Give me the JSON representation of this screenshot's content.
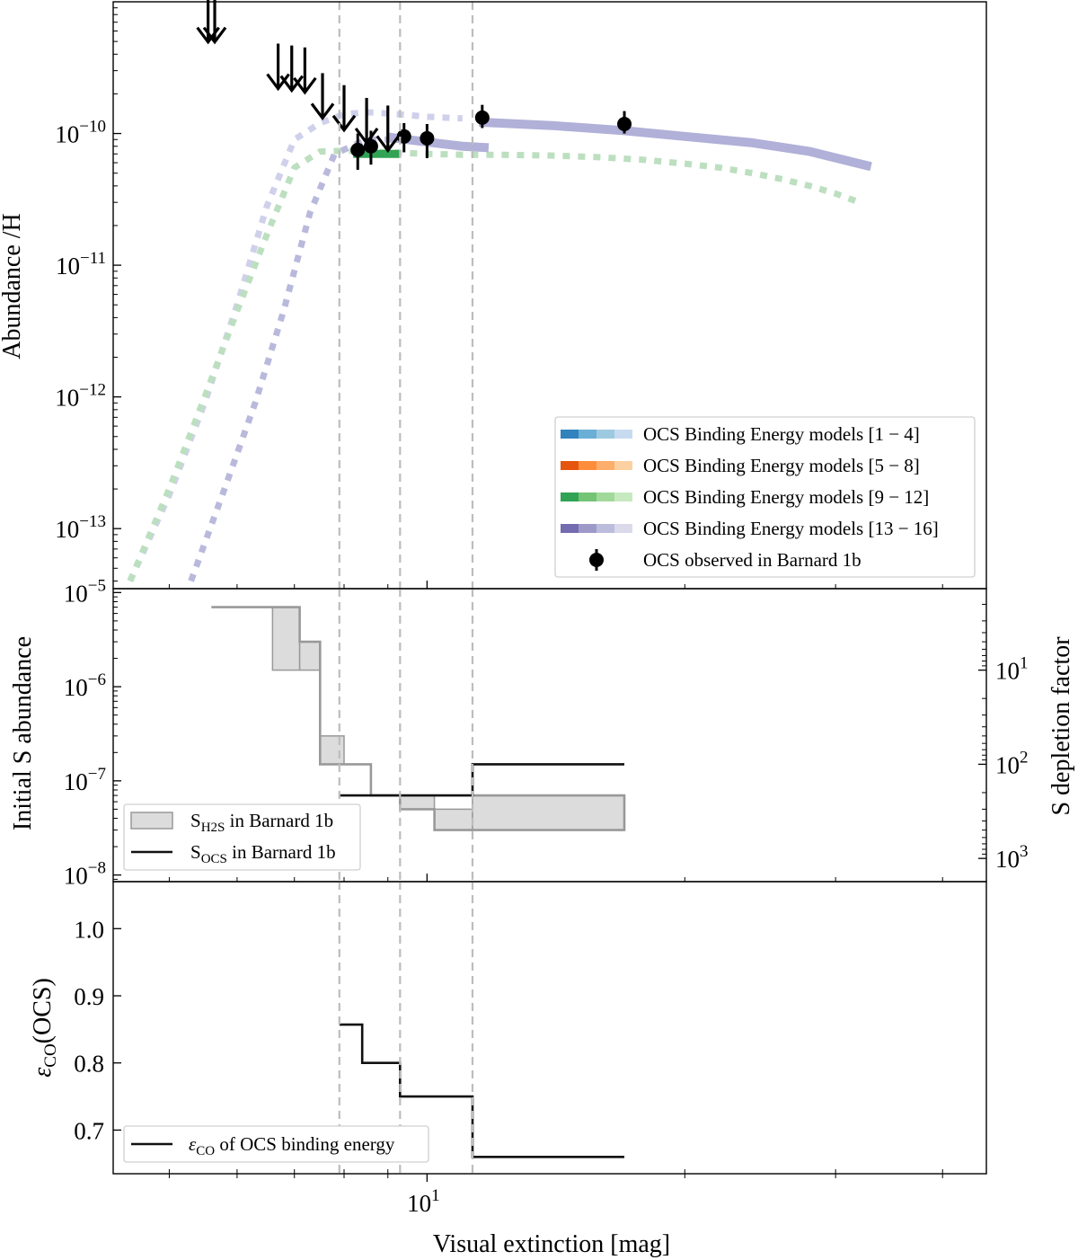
{
  "chart_data": [
    {
      "panel": "top",
      "type": "line",
      "xscale": "log",
      "yscale": "log",
      "xlim": [
        4.3,
        45
      ],
      "ylim": [
        3.5e-14,
        1e-09
      ],
      "xlabel": "",
      "ylabel": "Abundance /H",
      "yticks": [
        {
          "value": 1e-13,
          "base": "10",
          "exp": "−13"
        },
        {
          "value": 1e-12,
          "base": "10",
          "exp": "−12"
        },
        {
          "value": 1e-11,
          "base": "10",
          "exp": "−11"
        },
        {
          "value": 1e-10,
          "base": "10",
          "exp": "−10"
        }
      ],
      "vlines": [
        7.9,
        9.3,
        11.3
      ],
      "series": [
        {
          "name": "model-13-16-faint",
          "color": "#cfd0ea",
          "style": "dotted",
          "points": [
            [
              4.5,
              4e-14
            ],
            [
              5.0,
              1.8e-13
            ],
            [
              5.5,
              9e-13
            ],
            [
              6.0,
              5e-12
            ],
            [
              6.5,
              2.8e-11
            ],
            [
              7.0,
              9e-11
            ],
            [
              7.5,
              1.2e-10
            ],
            [
              8.0,
              1.4e-10
            ],
            [
              8.5,
              1.45e-10
            ],
            [
              9.0,
              1.42e-10
            ],
            [
              9.5,
              1.38e-10
            ],
            [
              10.0,
              1.34e-10
            ],
            [
              11.0,
              1.3e-10
            ]
          ]
        },
        {
          "name": "model-13-16-mid",
          "color": "#b9b9dc",
          "style": "dotted",
          "points": [
            [
              5.3,
              4e-14
            ],
            [
              5.8,
              2e-13
            ],
            [
              6.3,
              9e-13
            ],
            [
              6.8,
              4.5e-12
            ],
            [
              7.3,
              2.5e-11
            ],
            [
              7.8,
              7e-11
            ],
            [
              8.5,
              9e-11
            ],
            [
              9.5,
              9e-11
            ],
            [
              10.5,
              8.5e-11
            ]
          ]
        },
        {
          "name": "model-9-12-dotted",
          "color": "#bcdfc0",
          "style": "dotted",
          "points": [
            [
              4.5,
              4e-14
            ],
            [
              5.0,
              2e-13
            ],
            [
              5.5,
              1e-12
            ],
            [
              6.0,
              4.5e-12
            ],
            [
              6.5,
              1.7e-11
            ],
            [
              7.0,
              5.5e-11
            ],
            [
              7.5,
              7.3e-11
            ],
            [
              8.0,
              7.4e-11
            ],
            [
              8.5,
              7.3e-11
            ],
            [
              9.0,
              7.2e-11
            ],
            [
              10.0,
              7e-11
            ],
            [
              11.0,
              6.9e-11
            ],
            [
              12.0,
              6.9e-11
            ],
            [
              14.0,
              6.8e-11
            ],
            [
              16.0,
              6.6e-11
            ],
            [
              18.0,
              6.3e-11
            ],
            [
              20.0,
              5.9e-11
            ],
            [
              22.0,
              5.5e-11
            ],
            [
              24.0,
              5e-11
            ],
            [
              26.0,
              4.5e-11
            ],
            [
              28.0,
              4e-11
            ],
            [
              30.0,
              3.5e-11
            ],
            [
              32.0,
              3e-11
            ]
          ]
        },
        {
          "name": "model-9-12-fit",
          "color": "#31a354",
          "style": "solid",
          "points": [
            [
              8.2,
              7e-11
            ],
            [
              9.3,
              7e-11
            ]
          ]
        },
        {
          "name": "model-13-16-fit-1",
          "color": "#b0b0d8",
          "style": "solid",
          "points": [
            [
              9.0,
              9.4e-11
            ],
            [
              10.0,
              8.6e-11
            ],
            [
              11.0,
              8e-11
            ],
            [
              11.8,
              7.8e-11
            ]
          ]
        },
        {
          "name": "model-13-16-fit-2",
          "color": "#b0b0d8",
          "style": "solid",
          "points": [
            [
              11.5,
              1.22e-10
            ],
            [
              14.0,
              1.15e-10
            ],
            [
              17.0,
              1.05e-10
            ],
            [
              20.0,
              9.5e-11
            ],
            [
              24.0,
              8.5e-11
            ],
            [
              28.0,
              7.3e-11
            ],
            [
              33.0,
              5.6e-11
            ]
          ]
        }
      ],
      "upper_limits": [
        [
          5.55,
          7e-10
        ],
        [
          5.65,
          7e-10
        ],
        [
          6.7,
          3.1e-10
        ],
        [
          6.95,
          3e-10
        ],
        [
          7.2,
          2.9e-10
        ],
        [
          7.55,
          1.85e-10
        ],
        [
          8.0,
          1.5e-10
        ],
        [
          8.5,
          1.2e-10
        ],
        [
          9.0,
          1.05e-10
        ]
      ],
      "observations": [
        [
          8.3,
          7.5e-11,
          5.3e-11,
          1e-10
        ],
        [
          8.6,
          8e-11,
          5.8e-11,
          1.05e-10
        ],
        [
          9.4,
          9.5e-11,
          7.2e-11,
          1.2e-10
        ],
        [
          10.0,
          9.2e-11,
          6.5e-11,
          1.18e-10
        ],
        [
          11.6,
          1.32e-10,
          1.1e-10,
          1.65e-10
        ],
        [
          17.0,
          1.18e-10,
          1e-10,
          1.48e-10
        ]
      ],
      "legend": {
        "placement": "lower-right",
        "entries": [
          {
            "label": "OCS Binding Energy models [1 − 4]",
            "colors": [
              "#3182bd",
              "#6baed6",
              "#9ecae1",
              "#c6dbef"
            ]
          },
          {
            "label": "OCS Binding Energy models [5 − 8]",
            "colors": [
              "#e6550d",
              "#fd8d3c",
              "#fdae6b",
              "#fdd0a2"
            ]
          },
          {
            "label": "OCS Binding Energy models [9 − 12]",
            "colors": [
              "#31a354",
              "#74c476",
              "#a1d99b",
              "#c7e9c0"
            ]
          },
          {
            "label": "OCS Binding Energy models [13 − 16]",
            "colors": [
              "#756bb1",
              "#9e9ac8",
              "#bcbddc",
              "#dadaeb"
            ]
          },
          {
            "label": "OCS observed in Barnard 1b",
            "colors": [
              "#000000"
            ]
          }
        ]
      }
    },
    {
      "panel": "middle",
      "type": "line",
      "xscale": "log",
      "yscale": "log",
      "xlim": [
        4.3,
        45
      ],
      "ylim": [
        8.5e-09,
        1.1e-05
      ],
      "ylabel": "Initial S abundance",
      "y2label": "S depletion factor",
      "yticks": [
        {
          "value": 1e-05,
          "base": "10",
          "exp": "−5"
        },
        {
          "value": 1e-06,
          "base": "10",
          "exp": "−6"
        },
        {
          "value": 1e-07,
          "base": "10",
          "exp": "−7"
        },
        {
          "value": 1e-08,
          "base": "10",
          "exp": "−8"
        }
      ],
      "y2ticks": [
        {
          "value": 1.5e-06,
          "base": "10",
          "exp": "1"
        },
        {
          "value": 1.5e-07,
          "base": "10",
          "exp": "2"
        },
        {
          "value": 1.5e-08,
          "base": "10",
          "exp": "3"
        }
      ],
      "vlines": [
        7.9,
        9.3,
        11.3
      ],
      "h2s_bands": [
        [
          6.6,
          7.1,
          1.5e-06,
          7e-06
        ],
        [
          7.1,
          7.5,
          1.5e-06,
          3e-06
        ],
        [
          7.5,
          8.0,
          1.5e-07,
          3e-07
        ],
        [
          9.3,
          10.2,
          5e-08,
          7e-08
        ],
        [
          10.2,
          11.3,
          3e-08,
          5e-08
        ],
        [
          11.3,
          17.0,
          3e-08,
          7e-08
        ]
      ],
      "h2s_step": [
        [
          5.6,
          7e-06
        ],
        [
          7.1,
          7e-06
        ],
        [
          7.1,
          3e-06
        ],
        [
          7.5,
          3e-06
        ],
        [
          7.5,
          1.5e-07
        ],
        [
          8.6,
          1.5e-07
        ],
        [
          8.6,
          7e-08
        ],
        [
          9.3,
          7e-08
        ],
        [
          9.3,
          5e-08
        ],
        [
          10.2,
          5e-08
        ],
        [
          10.2,
          3e-08
        ],
        [
          17.0,
          3e-08
        ],
        [
          17.0,
          7e-08
        ],
        [
          11.3,
          7e-08
        ]
      ],
      "ocs_step": [
        [
          7.9,
          7e-08
        ],
        [
          11.3,
          7e-08
        ],
        [
          11.3,
          1.5e-07
        ],
        [
          17.0,
          1.5e-07
        ]
      ],
      "legend": {
        "placement": "lower-left",
        "entries": [
          {
            "label": "in Barnard 1b",
            "symbol": "S",
            "sub": "H2S",
            "kind": "patch"
          },
          {
            "label": "in Barnard 1b",
            "symbol": "S",
            "sub": "OCS",
            "kind": "line"
          }
        ]
      }
    },
    {
      "panel": "bottom",
      "type": "line",
      "xscale": "log",
      "yscale": "linear",
      "xlim": [
        4.3,
        45
      ],
      "ylim": [
        0.635,
        1.07
      ],
      "xlabel": "Visual extinction [mag]",
      "ylabel_main": "ε",
      "ylabel_sub": "CO",
      "ylabel_tail": "(OCS)",
      "yticks": [
        "0.7",
        "0.8",
        "0.9",
        "1.0"
      ],
      "xticks": [
        {
          "value": 10,
          "base": "10",
          "exp": "1"
        }
      ],
      "vlines": [
        7.9,
        9.3,
        11.3
      ],
      "step": [
        [
          7.9,
          0.857
        ],
        [
          8.4,
          0.857
        ],
        [
          8.4,
          0.8
        ],
        [
          9.3,
          0.8
        ],
        [
          9.3,
          0.75
        ],
        [
          11.3,
          0.75
        ],
        [
          11.3,
          0.66
        ],
        [
          17.0,
          0.66
        ]
      ],
      "legend": {
        "placement": "lower-left",
        "entries": [
          {
            "symbol": "ε",
            "sub": "CO",
            "label": "of OCS binding energy"
          }
        ]
      }
    }
  ]
}
